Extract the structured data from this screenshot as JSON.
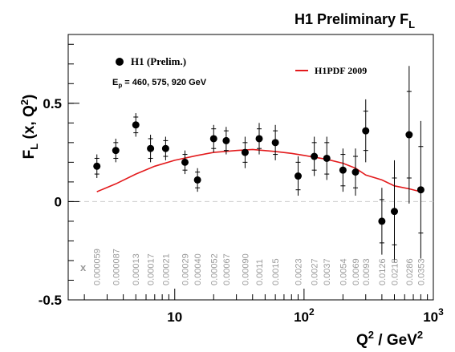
{
  "chart_data": {
    "type": "scatter",
    "title": "H1 Preliminary F",
    "title_sub": "L",
    "ylabel_main": "F",
    "ylabel_sub": "L",
    "ylabel_rest": "(x, Q",
    "ylabel_sup": "2",
    "ylabel_end": ")",
    "xlabel_main": "Q",
    "xlabel_sup": "2",
    "xlabel_rest": "/ GeV",
    "xlabel_sup2": "2",
    "x_scale": "log",
    "xlim": [
      1.5,
      1000
    ],
    "ylim": [
      -0.5,
      0.85
    ],
    "x_ticks": [
      {
        "value": 10,
        "label": "10"
      },
      {
        "value": 100,
        "label": "10",
        "sup": "2"
      },
      {
        "value": 1000,
        "label": "10",
        "sup": "3"
      }
    ],
    "y_ticks": [
      {
        "value": -0.5,
        "label": "-0.5"
      },
      {
        "value": 0,
        "label": "0"
      },
      {
        "value": 0.5,
        "label": "0.5"
      }
    ],
    "legend": {
      "data_label": "H1 (Prelim.)",
      "energy_main": "E",
      "energy_sub": "p",
      "energy_rest": " = 460, 575, 920 GeV",
      "curve_label": "H1PDF 2009"
    },
    "x_row_label": "x",
    "series": [
      {
        "name": "H1 (Prelim.)",
        "points": [
          {
            "q2": 2.5,
            "fl": 0.18,
            "err": 0.06,
            "sys": 0.04,
            "x": "0.000059"
          },
          {
            "q2": 3.5,
            "fl": 0.26,
            "err": 0.06,
            "sys": 0.04,
            "x": "0.000087"
          },
          {
            "q2": 5.0,
            "fl": 0.39,
            "err": 0.06,
            "sys": 0.04,
            "x": "0.00013"
          },
          {
            "q2": 6.5,
            "fl": 0.27,
            "err": 0.07,
            "sys": 0.05,
            "x": "0.00017"
          },
          {
            "q2": 8.5,
            "fl": 0.27,
            "err": 0.06,
            "sys": 0.04,
            "x": "0.00021"
          },
          {
            "q2": 12,
            "fl": 0.2,
            "err": 0.06,
            "sys": 0.04,
            "x": "0.00029"
          },
          {
            "q2": 15,
            "fl": 0.11,
            "err": 0.06,
            "sys": 0.04,
            "x": "0.00040"
          },
          {
            "q2": 20,
            "fl": 0.32,
            "err": 0.07,
            "sys": 0.05,
            "x": "0.00052"
          },
          {
            "q2": 25,
            "fl": 0.31,
            "err": 0.07,
            "sys": 0.05,
            "x": "0.00067"
          },
          {
            "q2": 35,
            "fl": 0.25,
            "err": 0.08,
            "sys": 0.05,
            "x": "0.00090"
          },
          {
            "q2": 45,
            "fl": 0.32,
            "err": 0.08,
            "sys": 0.05,
            "x": "0.0011"
          },
          {
            "q2": 60,
            "fl": 0.3,
            "err": 0.09,
            "sys": 0.06,
            "x": "0.0015"
          },
          {
            "q2": 90,
            "fl": 0.13,
            "err": 0.1,
            "sys": 0.07,
            "x": "0.0023"
          },
          {
            "q2": 120,
            "fl": 0.23,
            "err": 0.1,
            "sys": 0.07,
            "x": "0.0027"
          },
          {
            "q2": 150,
            "fl": 0.22,
            "err": 0.11,
            "sys": 0.08,
            "x": "0.0037"
          },
          {
            "q2": 200,
            "fl": 0.16,
            "err": 0.11,
            "sys": 0.08,
            "x": "0.0054"
          },
          {
            "q2": 250,
            "fl": 0.15,
            "err": 0.12,
            "sys": 0.08,
            "x": "0.0069"
          },
          {
            "q2": 300,
            "fl": 0.36,
            "err": 0.16,
            "sys": 0.1,
            "x": "0.0093"
          },
          {
            "q2": 400,
            "fl": -0.1,
            "err": 0.17,
            "sys": 0.11,
            "x": "0.0126"
          },
          {
            "q2": 500,
            "fl": -0.05,
            "err": 0.26,
            "sys": 0.17,
            "x": "0.0218"
          },
          {
            "q2": 650,
            "fl": 0.34,
            "err": 0.35,
            "sys": 0.22,
            "x": "0.0286"
          },
          {
            "q2": 800,
            "fl": 0.06,
            "err": 0.35,
            "sys": 0.22,
            "x": "0.0353"
          }
        ]
      },
      {
        "name": "H1PDF 2009",
        "color": "#e31a1c",
        "curve": [
          [
            2.5,
            0.05
          ],
          [
            3.5,
            0.09
          ],
          [
            5,
            0.14
          ],
          [
            7,
            0.18
          ],
          [
            10,
            0.21
          ],
          [
            15,
            0.235
          ],
          [
            20,
            0.25
          ],
          [
            30,
            0.26
          ],
          [
            40,
            0.265
          ],
          [
            60,
            0.255
          ],
          [
            80,
            0.245
          ],
          [
            100,
            0.235
          ],
          [
            150,
            0.215
          ],
          [
            200,
            0.195
          ],
          [
            250,
            0.17
          ],
          [
            300,
            0.135
          ],
          [
            400,
            0.11
          ],
          [
            500,
            0.08
          ],
          [
            650,
            0.065
          ],
          [
            800,
            0.05
          ]
        ]
      }
    ],
    "grid": false,
    "legend_placement": "top"
  }
}
